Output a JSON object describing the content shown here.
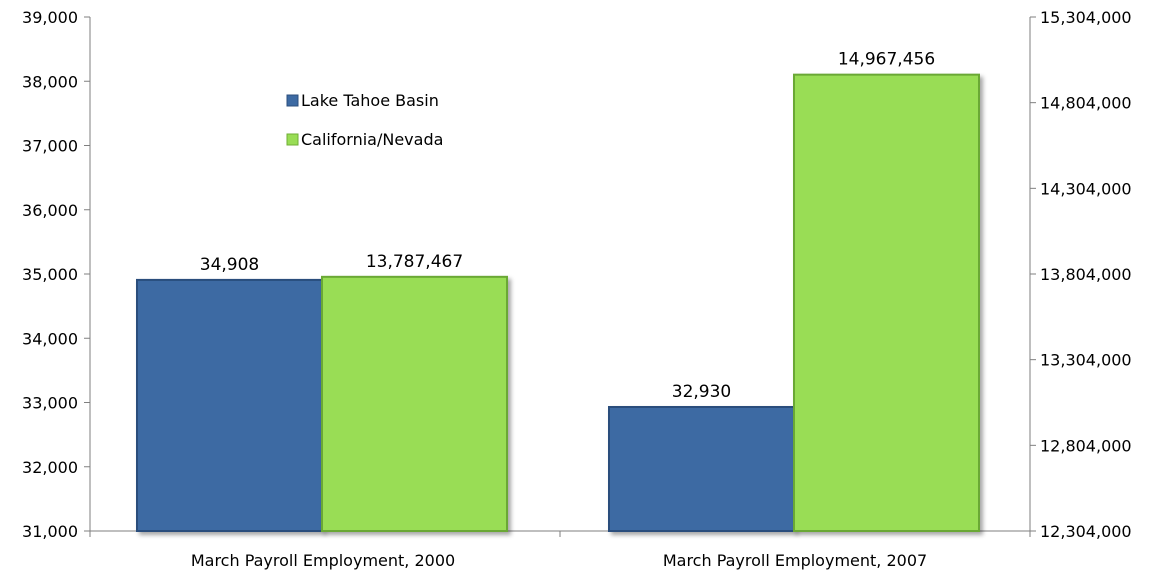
{
  "chart_data": {
    "type": "bar",
    "categories": [
      "March Payroll Employment, 2000",
      "March Payroll Employment, 2007"
    ],
    "series": [
      {
        "name": "Lake Tahoe Basin",
        "axis": "left",
        "color": "#3d6aa3",
        "values": [
          34908,
          32930
        ],
        "value_labels": [
          "34,908",
          "32,930"
        ]
      },
      {
        "name": "California/Nevada",
        "axis": "right",
        "color": "#99dd55",
        "values": [
          13787467,
          14967456
        ],
        "value_labels": [
          "13,787,467",
          "14,967,456"
        ]
      }
    ],
    "y_left": {
      "min": 31000,
      "max": 39000,
      "ticks": [
        31000,
        32000,
        33000,
        34000,
        35000,
        36000,
        37000,
        38000,
        39000
      ],
      "tick_labels": [
        "31,000",
        "32,000",
        "33,000",
        "34,000",
        "35,000",
        "36,000",
        "37,000",
        "38,000",
        "39,000"
      ]
    },
    "y_right": {
      "min": 12304000,
      "max": 15304000,
      "ticks": [
        12304000,
        12804000,
        13304000,
        13804000,
        14304000,
        14804000,
        15304000
      ],
      "tick_labels": [
        "12,304,000",
        "12,804,000",
        "13,304,000",
        "13,804,000",
        "14,304,000",
        "14,804,000",
        "15,304,000"
      ]
    },
    "legend": {
      "placement": "upper-left-inside"
    },
    "grid": false
  }
}
